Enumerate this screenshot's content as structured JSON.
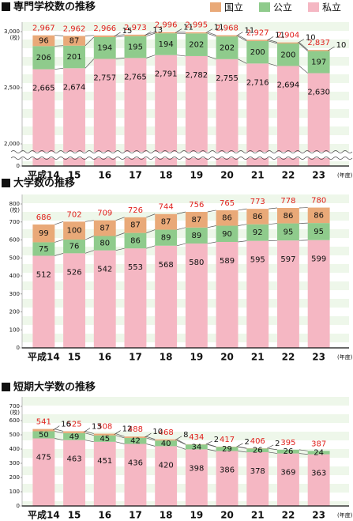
{
  "chart_data": [
    {
      "type": "bar",
      "stacked": true,
      "title": "専門学校数の推移",
      "y_unit": "(校)",
      "x_unit": "(年度)",
      "axis_break": true,
      "categories": [
        "平成14",
        "15",
        "16",
        "17",
        "18",
        "19",
        "20",
        "21",
        "22",
        "23"
      ],
      "series": [
        {
          "name": "国立",
          "color": "#e9a978",
          "values": [
            96,
            87,
            15,
            13,
            11,
            11,
            11,
            11,
            10,
            10
          ]
        },
        {
          "name": "公立",
          "color": "#8fcb8c",
          "values": [
            206,
            201,
            194,
            195,
            194,
            202,
            202,
            200,
            200,
            197
          ]
        },
        {
          "name": "私立",
          "color": "#f5b7c3",
          "values": [
            2665,
            2674,
            2757,
            2765,
            2791,
            2782,
            2755,
            2716,
            2694,
            2630
          ],
          "value_labels": [
            "2,665",
            "2,674",
            "2,757",
            "2,765",
            "2,791",
            "2,782",
            "2,755",
            "2,716",
            "2,694",
            "2,630"
          ]
        }
      ],
      "totals": {
        "color": "#e0201c",
        "values": [
          2967,
          2962,
          2966,
          2973,
          2996,
          2995,
          2968,
          2927,
          2904,
          2837
        ],
        "value_labels": [
          "2,967",
          "2,962",
          "2,966",
          "2,973",
          "2,996",
          "2,995",
          "2,968",
          "2,927",
          "2,904",
          "2,837"
        ]
      },
      "ylim": [
        0,
        3000
      ],
      "yticks": [
        0,
        {
          "value": 2000,
          "label": "2,000"
        },
        {
          "value": 2500,
          "label": "2,500"
        },
        {
          "value": 3000,
          "label": "3,000"
        }
      ]
    },
    {
      "type": "bar",
      "stacked": true,
      "title": "大学数の推移",
      "y_unit": "(校)",
      "x_unit": "(年度)",
      "categories": [
        "平成14",
        "15",
        "16",
        "17",
        "18",
        "19",
        "20",
        "21",
        "22",
        "23"
      ],
      "series": [
        {
          "color": "#e9a978",
          "values": [
            99,
            100,
            87,
            87,
            87,
            87,
            86,
            86,
            86,
            86
          ]
        },
        {
          "color": "#8fcb8c",
          "values": [
            75,
            76,
            80,
            86,
            89,
            89,
            90,
            92,
            95,
            95
          ]
        },
        {
          "color": "#f5b7c3",
          "values": [
            512,
            526,
            542,
            553,
            568,
            580,
            589,
            595,
            597,
            599
          ]
        }
      ],
      "totals": {
        "color": "#e0201c",
        "values": [
          686,
          702,
          709,
          726,
          744,
          756,
          765,
          773,
          778,
          780
        ]
      },
      "ylim": [
        0,
        800
      ],
      "yticks": [
        0,
        100,
        200,
        300,
        400,
        500,
        600,
        700,
        800
      ]
    },
    {
      "type": "bar",
      "stacked": true,
      "title": "短期大学数の推移",
      "y_unit": "(校)",
      "x_unit": "(年度)",
      "categories": [
        "平成14",
        "15",
        "16",
        "17",
        "18",
        "19",
        "20",
        "21",
        "22",
        "23"
      ],
      "series": [
        {
          "color": "#e9a978",
          "values": [
            16,
            13,
            12,
            10,
            8,
            2,
            2,
            2,
            null,
            null
          ]
        },
        {
          "color": "#8fcb8c",
          "values": [
            50,
            49,
            45,
            42,
            40,
            34,
            29,
            26,
            26,
            24
          ]
        },
        {
          "color": "#f5b7c3",
          "values": [
            475,
            463,
            451,
            436,
            420,
            398,
            386,
            378,
            369,
            363
          ]
        }
      ],
      "totals": {
        "color": "#e0201c",
        "values": [
          541,
          525,
          508,
          488,
          468,
          434,
          417,
          406,
          395,
          387
        ]
      },
      "ylim": [
        0,
        700
      ],
      "yticks": [
        0,
        100,
        200,
        300,
        400,
        500,
        600,
        700
      ]
    }
  ]
}
